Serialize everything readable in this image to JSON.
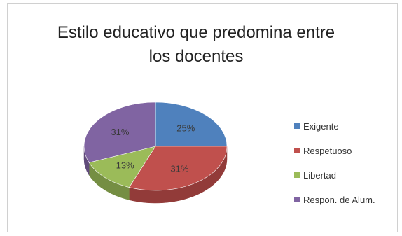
{
  "chart_data": {
    "type": "pie",
    "title_lines": [
      "Estilo educativo que predomina entre",
      "los docentes"
    ],
    "categories": [
      "Exigente",
      "Respetuoso",
      "Libertad",
      "Respon. de Alum."
    ],
    "values": [
      25,
      31,
      13,
      31
    ],
    "labels": [
      "25%",
      "31%",
      "13%",
      "31%"
    ],
    "colors": [
      "#4F81BD",
      "#C0504D",
      "#9BBB59",
      "#8064A2"
    ],
    "dark_colors": [
      "#3A6390",
      "#923B39",
      "#758E43",
      "#604B7A"
    ],
    "legend_position": "right",
    "three_d": true
  }
}
